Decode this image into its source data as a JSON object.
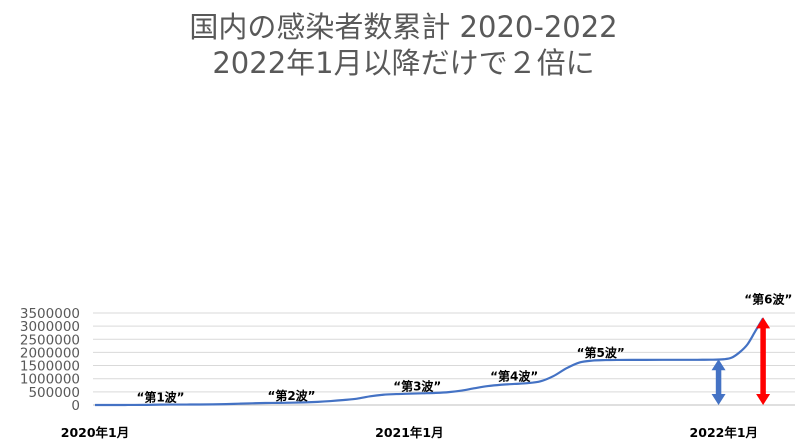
{
  "chart_data": {
    "type": "line",
    "title": "国内の感染者数累計 2020-2022",
    "subtitle": "2022年1月以降だけで２倍に",
    "yticks": [
      "0",
      "500000",
      "1000000",
      "1500000",
      "2000000",
      "2500000",
      "3000000",
      "3500000"
    ],
    "ylim": [
      0,
      3500000
    ],
    "xticks": [
      "2020年1月",
      "2021年1月",
      "2022年1月"
    ],
    "grid": "horizontal",
    "legend": "none",
    "series": [
      {
        "values": [
          [
            0,
            0
          ],
          [
            0.5,
            100
          ],
          [
            1,
            1000
          ],
          [
            1.5,
            2200
          ],
          [
            2,
            6000
          ],
          [
            2.5,
            14000
          ],
          [
            3,
            16500
          ],
          [
            3.5,
            17400
          ],
          [
            4,
            19000
          ],
          [
            4.5,
            24000
          ],
          [
            5,
            33000
          ],
          [
            5.5,
            50000
          ],
          [
            6,
            65000
          ],
          [
            6.5,
            75000
          ],
          [
            7,
            80000
          ],
          [
            7.5,
            88000
          ],
          [
            8,
            100000
          ],
          [
            8.5,
            120000
          ],
          [
            9,
            150000
          ],
          [
            9.5,
            190000
          ],
          [
            10,
            240000
          ],
          [
            10.5,
            330000
          ],
          [
            11,
            390000
          ],
          [
            11.5,
            415000
          ],
          [
            12,
            430000
          ],
          [
            12.5,
            445000
          ],
          [
            13,
            460000
          ],
          [
            13.5,
            490000
          ],
          [
            14,
            550000
          ],
          [
            14.5,
            640000
          ],
          [
            15,
            720000
          ],
          [
            15.5,
            770000
          ],
          [
            16,
            800000
          ],
          [
            16.5,
            830000
          ],
          [
            17,
            900000
          ],
          [
            17.5,
            1100000
          ],
          [
            18,
            1400000
          ],
          [
            18.5,
            1620000
          ],
          [
            19,
            1690000
          ],
          [
            19.5,
            1708000
          ],
          [
            20,
            1714000
          ],
          [
            20.5,
            1716000
          ],
          [
            21,
            1717000
          ],
          [
            22,
            1718000
          ],
          [
            23,
            1719000
          ],
          [
            23.5,
            1722000
          ],
          [
            24,
            1740000
          ],
          [
            24.3,
            1800000
          ],
          [
            24.6,
            2000000
          ],
          [
            24.9,
            2300000
          ],
          [
            25.2,
            2800000
          ],
          [
            25.5,
            3300000
          ]
        ],
        "color": "#4472c4"
      }
    ],
    "annotations": [
      {
        "text": "“第1波”",
        "x": 2.5,
        "y": 130000
      },
      {
        "text": "“第2波”",
        "x": 7.5,
        "y": 190000
      },
      {
        "text": "“第3波”",
        "x": 12.3,
        "y": 560000
      },
      {
        "text": "“第4波”",
        "x": 16.0,
        "y": 930000
      },
      {
        "text": "“第5波”",
        "x": 19.3,
        "y": 1820000
      },
      {
        "text": "“第6波”",
        "x": 25.7,
        "y": 3860000
      }
    ],
    "arrows": [
      {
        "color": "#4472c4",
        "x": 23.8,
        "from": 0,
        "to": 1740000
      },
      {
        "color": "#ff0000",
        "x": 25.5,
        "from": 0,
        "to": 3330000
      }
    ]
  }
}
